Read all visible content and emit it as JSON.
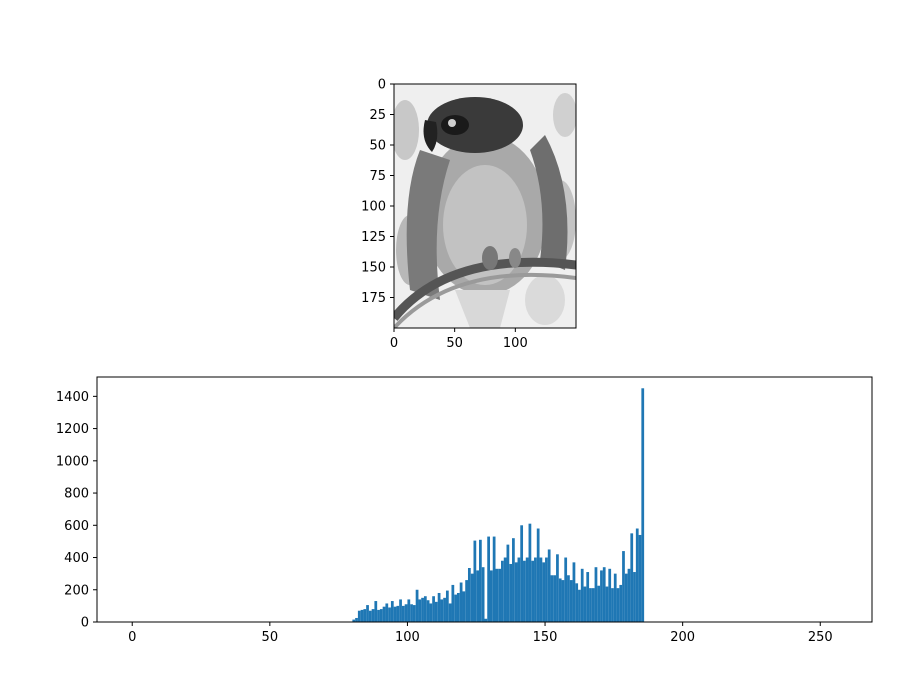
{
  "chart_data": [
    {
      "type": "image",
      "description_colormap": "gray",
      "xlim": [
        0,
        150
      ],
      "ylim": [
        200,
        0
      ],
      "xticks": [
        0,
        50,
        100
      ],
      "yticks": [
        0,
        25,
        50,
        75,
        100,
        125,
        150,
        175
      ]
    },
    {
      "type": "bar",
      "xlim": [
        -12.8,
        268.8
      ],
      "ylim": [
        0,
        1520
      ],
      "xticks": [
        0,
        50,
        100,
        150,
        200,
        250
      ],
      "yticks": [
        0,
        200,
        400,
        600,
        800,
        1000,
        1200,
        1400
      ],
      "bar_color": "#1f77b4",
      "x": [
        80,
        81,
        82,
        83,
        84,
        85,
        86,
        87,
        88,
        89,
        90,
        91,
        92,
        93,
        94,
        95,
        96,
        97,
        98,
        99,
        100,
        101,
        102,
        103,
        104,
        105,
        106,
        107,
        108,
        109,
        110,
        111,
        112,
        113,
        114,
        115,
        116,
        117,
        118,
        119,
        120,
        121,
        122,
        123,
        124,
        125,
        126,
        127,
        128,
        129,
        130,
        131,
        132,
        133,
        134,
        135,
        136,
        137,
        138,
        139,
        140,
        141,
        142,
        143,
        144,
        145,
        146,
        147,
        148,
        149,
        150,
        151,
        152,
        153,
        154,
        155,
        156,
        157,
        158,
        159,
        160,
        161,
        162,
        163,
        164,
        165,
        166,
        167,
        168,
        169,
        170,
        171,
        172,
        173,
        174,
        175,
        176,
        177,
        178,
        179,
        180,
        181,
        182,
        183,
        184,
        185,
        186,
        187
      ],
      "values": [
        15,
        25,
        70,
        75,
        80,
        105,
        70,
        80,
        130,
        75,
        80,
        95,
        115,
        90,
        130,
        95,
        100,
        140,
        100,
        110,
        140,
        110,
        105,
        200,
        140,
        150,
        160,
        135,
        115,
        160,
        125,
        180,
        140,
        150,
        195,
        115,
        230,
        170,
        180,
        245,
        190,
        260,
        335,
        300,
        505,
        320,
        510,
        340,
        20,
        530,
        320,
        530,
        330,
        330,
        380,
        400,
        480,
        360,
        520,
        370,
        400,
        600,
        380,
        400,
        610,
        380,
        400,
        580,
        400,
        370,
        400,
        450,
        290,
        290,
        420,
        270,
        260,
        400,
        290,
        260,
        370,
        240,
        200,
        330,
        220,
        310,
        210,
        210,
        340,
        225,
        320,
        340,
        220,
        330,
        210,
        300,
        210,
        230,
        440,
        300,
        330,
        550,
        310,
        580,
        540,
        1450,
        0,
        0
      ]
    }
  ]
}
